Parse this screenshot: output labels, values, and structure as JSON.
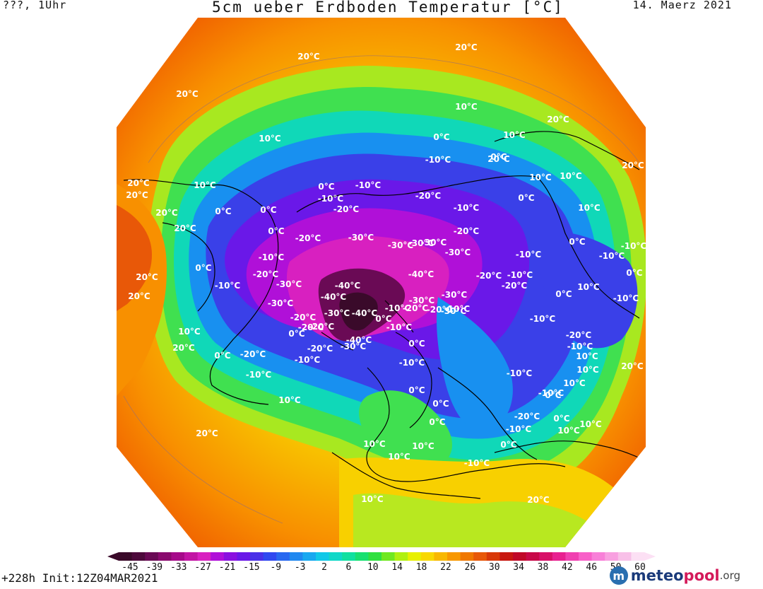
{
  "header": {
    "left": "???, 1Uhr",
    "title": "5cm ueber Erdboden Temperatur [°C]",
    "date": "14. Maerz 2021"
  },
  "map": {
    "projection": "north-polar-stereographic",
    "unit": "°C",
    "coastline_color": "#000000",
    "contour_labels": [
      "20°C",
      "20°C",
      "20°C",
      "10°C",
      "10°C",
      "20°C",
      "10°C",
      "0°C",
      "10°C",
      "20°C",
      "20°C",
      "20°C",
      "10°C",
      "0°C",
      "0°C",
      "0°C",
      "-10°C",
      "-10°C",
      "-20°C",
      "-20°C",
      "-30°C",
      "-30°C",
      "-30°C",
      "-20°C",
      "-10°C",
      "0°C",
      "20°C",
      "20°C",
      "-10°C",
      "-30°C",
      "-40°C",
      "-40°C",
      "-40°C",
      "-30°C",
      "-20°C",
      "-20°C",
      "-30°C",
      "0°C",
      "20°C",
      "0°C",
      "-20°C",
      "-10°C",
      "-10°C",
      "0°C",
      "10°C",
      "20°C",
      "0°C",
      "10°C",
      "-10°C",
      "-10°C",
      "-20°C",
      "-30°C",
      "-20°C",
      "-10°C",
      "-20°C",
      "-10°C",
      "-10°C",
      "0°C",
      "-10°C",
      "-20°C",
      "-30°C",
      "-10°C",
      "0°C",
      "0°C",
      "-10°C",
      "0°C",
      "10°C",
      "-20°C",
      "-20°C",
      "0°C",
      "-10°C",
      "0°C",
      "10°C",
      "-10°C",
      "10°C",
      "10°C",
      "20°C",
      "20°C",
      "10°C",
      "10°C",
      "10°C",
      "10°C",
      "20°C",
      "10°C",
      "10°C",
      "20°C",
      "-10°C",
      "-30°C",
      "0°C",
      "-20°C",
      "0°C",
      "-10°C",
      "-20°C",
      "0°C",
      "-10°C",
      "0°C",
      "10°C",
      "-30°C",
      "-10°C",
      "-20°C",
      "-10°C",
      "-40°C",
      "-20°C",
      "0°C",
      "-10°C",
      "-40°C",
      "0°C",
      "-10°C",
      "10°C",
      "20°C",
      "-30°C",
      "-30°C"
    ]
  },
  "colorbar": {
    "ticks": [
      "-45",
      "-39",
      "-33",
      "-27",
      "-21",
      "-15",
      "-9",
      "-3",
      "2",
      "6",
      "10",
      "14",
      "18",
      "22",
      "26",
      "30",
      "34",
      "38",
      "42",
      "46",
      "50",
      "60"
    ],
    "colors": [
      "#3a0a2a",
      "#4e0a3c",
      "#6a0a55",
      "#8a0a6e",
      "#a60a8a",
      "#c214a4",
      "#d820c0",
      "#b010d8",
      "#8a10e0",
      "#6a18e8",
      "#4a30e8",
      "#3048f0",
      "#2868f0",
      "#2088f0",
      "#18a8f0",
      "#10c8e8",
      "#10d8c8",
      "#10e0a0",
      "#18e070",
      "#30e040",
      "#70e820",
      "#b0f010",
      "#e8f000",
      "#f8d800",
      "#f8b800",
      "#f89800",
      "#f07800",
      "#e85808",
      "#d83808",
      "#c81810",
      "#c00828",
      "#c80848",
      "#d81068",
      "#e82090",
      "#f040b0",
      "#f860c8",
      "#f880d8",
      "#f8a0e0",
      "#f8c0e8",
      "#fce0f4"
    ]
  },
  "footer": {
    "run": "+228h Init:12Z04MAR2021",
    "logo_text_a": "meteo",
    "logo_text_b": "pool",
    "logo_text_c": ".org",
    "logo_color_a": "#1a3a7a",
    "logo_color_b": "#d41a5a"
  }
}
